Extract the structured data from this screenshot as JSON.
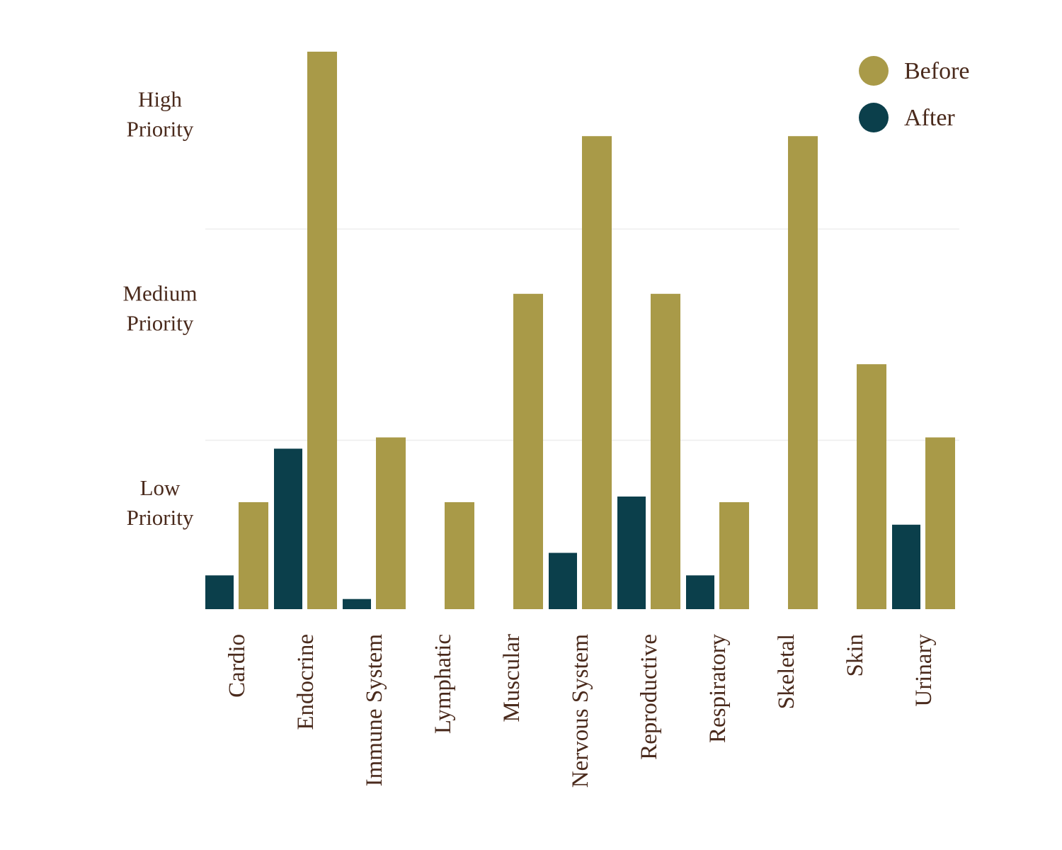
{
  "chart_data": {
    "type": "bar",
    "title": "",
    "xlabel": "",
    "ylabel": "",
    "categories": [
      "Cardio",
      "Endocrine",
      "Immune System",
      "Lymphatic",
      "Muscular",
      "Nervous System",
      "Reproductive",
      "Respiratory",
      "Skeletal",
      "Skin",
      "Urinary"
    ],
    "series": [
      {
        "name": "After",
        "color": "#0b3f4b",
        "values": [
          0.6,
          2.85,
          0.18,
          0,
          0,
          1.0,
          2.0,
          0.6,
          0,
          0,
          1.5
        ]
      },
      {
        "name": "Before",
        "color": "#a99a48",
        "values": [
          1.9,
          9.9,
          3.05,
          1.9,
          5.6,
          8.4,
          5.6,
          1.9,
          8.4,
          4.35,
          3.05
        ]
      }
    ],
    "ylim": [
      0,
      10
    ],
    "grid_values": [
      3,
      6.75
    ],
    "y_tick_labels": [
      {
        "value": 1.9,
        "lines": [
          "Low",
          "Priority"
        ]
      },
      {
        "value": 5.35,
        "lines": [
          "Medium",
          "Priority"
        ]
      },
      {
        "value": 8.8,
        "lines": [
          "High",
          "Priority"
        ]
      }
    ],
    "legend": {
      "position": "top-right",
      "entries": [
        {
          "label": "Before",
          "color": "#a99a48"
        },
        {
          "label": "After",
          "color": "#0b3f4b"
        }
      ]
    },
    "grid": true
  }
}
